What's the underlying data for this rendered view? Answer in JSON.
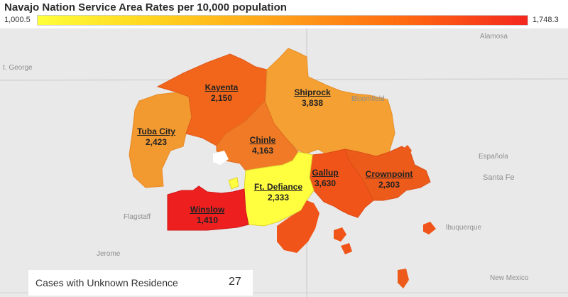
{
  "title": "Navajo Nation Service Area Rates per 10,000 population",
  "legend": {
    "min": "1,000.5",
    "max": "1,748.3"
  },
  "basemap_places": {
    "st_george": "t. George",
    "alamosa": "Alamosa",
    "bloomfield": "Bloomfield",
    "espanola": "Española",
    "santa_fe": "Santa Fe",
    "flagstaff": "Flagstaff",
    "albuquerque": "lbuquerque",
    "jerome": "Jerome",
    "new_mexico": "New Mexico"
  },
  "regions": [
    {
      "name": "Kayenta",
      "value": "2,150",
      "color": "#f2661b"
    },
    {
      "name": "Shiprock",
      "value": "3,838",
      "color": "#f4a032"
    },
    {
      "name": "Tuba City",
      "value": "2,423",
      "color": "#f29a30"
    },
    {
      "name": "Chinle",
      "value": "4,163",
      "color": "#f07a25"
    },
    {
      "name": "Gallup",
      "value": "3,630",
      "color": "#f05418"
    },
    {
      "name": "Crownpoint",
      "value": "2,303",
      "color": "#ec5b1a"
    },
    {
      "name": "Ft. Defiance",
      "value": "2,333",
      "color": "#ffff40"
    },
    {
      "name": "Winslow",
      "value": "1,410",
      "color": "#ee1f1f"
    }
  ],
  "unknown": {
    "label": "Cases with Unknown Residence",
    "value": "27"
  }
}
